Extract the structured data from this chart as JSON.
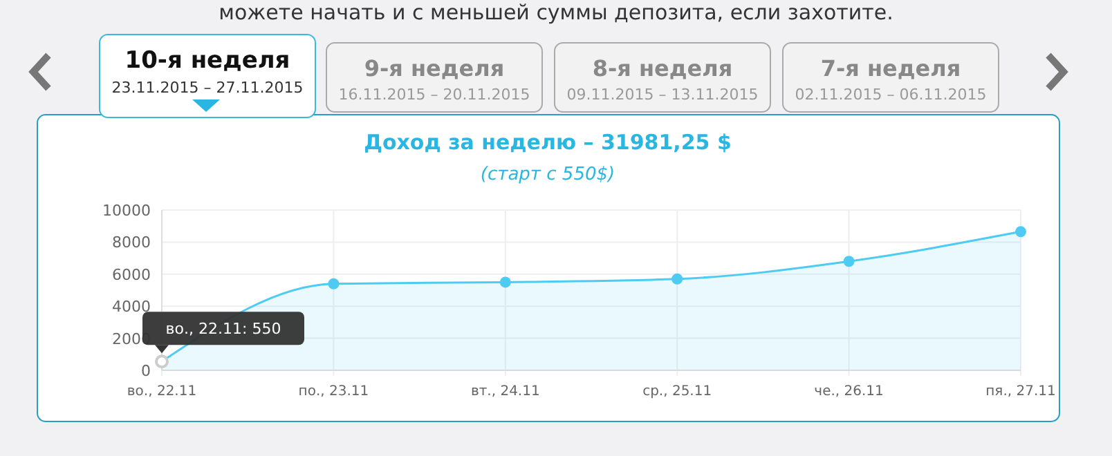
{
  "chart_data": {
    "type": "area",
    "title": "Доход за неделю – 31981,25 $",
    "subtitle": "(старт с 550$)",
    "categories": [
      "во., 22.11",
      "по., 23.11",
      "вт., 24.11",
      "ср., 25.11",
      "че., 26.11",
      "пя., 27.11"
    ],
    "series": [
      {
        "color": "#4dcbf2",
        "values": [
          550,
          5400,
          5500,
          5700,
          6800,
          8650
        ]
      }
    ],
    "ylim": [
      0,
      10000
    ],
    "yticks": [
      0,
      2000,
      4000,
      6000,
      8000,
      10000
    ],
    "grid": true,
    "marker": "circle",
    "annotations": [
      "можете начать и с меньшей суммы депозита, если захотите.",
      "10-я неделя",
      "23.11.2015 – 27.11.2015",
      "9-я неделя",
      "16.11.2015 – 20.11.2015",
      "8-я неделя",
      "09.11.2015 – 13.11.2015",
      "7-я неделя",
      "02.11.2015 – 06.11.2015",
      {
        "text": "во., 22.11: 550",
        "x": "во., 22.11",
        "y": 550
      }
    ]
  }
}
